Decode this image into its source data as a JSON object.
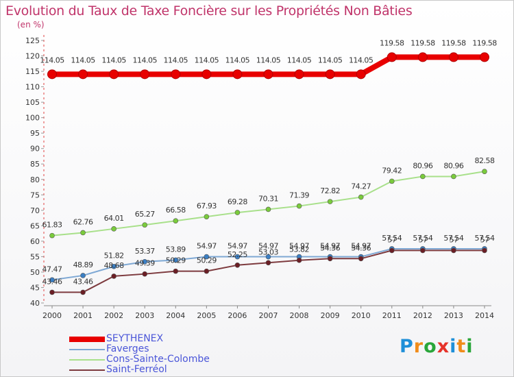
{
  "title": "Evolution du Taux de Taxe Foncière sur les Propriétés Non Bâties",
  "unit_label": "(en %)",
  "logo": {
    "text": "Proxiti"
  },
  "chart_data": {
    "type": "line",
    "title": "Evolution du Taux de Taxe Foncière sur les Propriétés Non Bâties",
    "ylabel": "(en %)",
    "xlabel": "",
    "ylim": [
      40,
      125
    ],
    "yticks": [
      40,
      45,
      50,
      55,
      60,
      65,
      70,
      75,
      80,
      85,
      90,
      95,
      100,
      105,
      110,
      115,
      120,
      125
    ],
    "x": [
      "2000",
      "2001",
      "2002",
      "2003",
      "2004",
      "2005",
      "2006",
      "2007",
      "2008",
      "2009",
      "2010",
      "2011",
      "2012",
      "2013",
      "2014"
    ],
    "series": [
      {
        "name": "SEYTHENEX",
        "color": "#e80000",
        "marker": "#e80000",
        "values": [
          114.05,
          114.05,
          114.05,
          114.05,
          114.05,
          114.05,
          114.05,
          114.05,
          114.05,
          114.05,
          114.05,
          119.58,
          119.58,
          119.58,
          119.58
        ],
        "labels": [
          "114.05",
          "114.05",
          "114.05",
          "114.05",
          "114.05",
          "114.05",
          "114.05",
          "114.05",
          "114.05",
          "114.05",
          "114.05",
          "119.58",
          "119.58",
          "119.58",
          "119.58"
        ]
      },
      {
        "name": "Faverges",
        "color": "#7ea8d4",
        "marker": "#3b7fc4",
        "values": [
          47.47,
          48.89,
          51.82,
          53.37,
          53.89,
          54.97,
          54.97,
          54.97,
          54.97,
          54.97,
          54.97,
          57.54,
          57.54,
          57.54,
          57.54
        ],
        "labels": [
          "47.47",
          "48.89",
          "51.82",
          "53.37",
          "53.89",
          "54.97",
          "54.97",
          "54.97",
          "54.97",
          "54.97",
          "54.97",
          "57.54",
          "57.54",
          "57.54",
          "57.54"
        ]
      },
      {
        "name": "Cons-Sainte-Colombe",
        "color": "#a8e08a",
        "marker": "#7acb3c",
        "values": [
          61.83,
          62.76,
          64.01,
          65.27,
          66.58,
          67.93,
          69.28,
          70.31,
          71.39,
          72.82,
          74.27,
          79.42,
          80.96,
          80.96,
          82.58
        ],
        "labels": [
          "61.83",
          "62.76",
          "64.01",
          "65.27",
          "66.58",
          "67.93",
          "69.28",
          "70.31",
          "71.39",
          "72.82",
          "74.27",
          "79.42",
          "80.96",
          "80.96",
          "82.58"
        ]
      },
      {
        "name": "Saint-Ferréol",
        "color": "#7d3a3e",
        "marker": "#6b1e25",
        "values": [
          43.46,
          43.46,
          48.68,
          49.39,
          50.29,
          50.29,
          52.25,
          53.03,
          53.82,
          54.36,
          54.36,
          57.0,
          57.0,
          57.0,
          57.0
        ],
        "labels": [
          "43.46",
          "43.46",
          "48.68",
          "49.39",
          "50.29",
          "50.29",
          "52.25",
          "53.03",
          "53.82",
          "54.36",
          "54.36",
          "57",
          "57",
          "57",
          "57"
        ]
      }
    ],
    "grid": false,
    "legend_position": "bottom-left"
  }
}
